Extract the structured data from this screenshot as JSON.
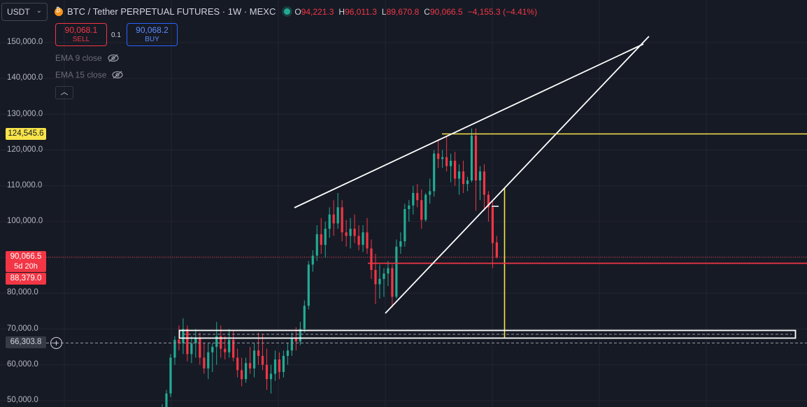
{
  "header": {
    "symbol_select": "USDT",
    "title": "BTC / Tether PERPETUAL FUTURES · 1W · MEXC",
    "ohlc": [
      {
        "label": "O",
        "value": "94,221.3"
      },
      {
        "label": "H",
        "value": "96,011.3"
      },
      {
        "label": "L",
        "value": "89,670.8"
      },
      {
        "label": "C",
        "value": "90,066.5"
      }
    ],
    "change": "−4,155.3 (−4.41%)"
  },
  "trade": {
    "sell_price": "90,068.1",
    "sell_label": "SELL",
    "spread": "0.1",
    "buy_price": "90,068.2",
    "buy_label": "BUY"
  },
  "indicators": [
    {
      "label": "EMA 9 close",
      "icon": "eye-hidden-icon"
    },
    {
      "label": "EMA 15 close",
      "icon": "eye-hidden-icon"
    }
  ],
  "price_axis": {
    "labels": [
      "150,000.0",
      "140,000.0",
      "130,000.0",
      "120,000.0",
      "110,000.0",
      "100,000.0",
      "80,000.0",
      "70,000.0",
      "60,000.0",
      "50,000.0"
    ],
    "yellow_tag": "124,545.6",
    "current_price": "90,066.5",
    "countdown": "5d 20h",
    "red_tag": "88,379.0",
    "crosshair_tag": "66,303.8"
  },
  "colors": {
    "background": "#161a25",
    "up": "#22ab94",
    "down": "#f23645",
    "yellow_line": "#f8e44a",
    "grid": "#232632"
  },
  "chart_data": {
    "type": "candlestick",
    "symbol": "BTC / Tether PERPETUAL FUTURES",
    "interval": "1W",
    "ylim": [
      48000,
      157000
    ],
    "candles": [
      [
        46000,
        49000,
        45500,
        48000
      ],
      [
        48000,
        53000,
        47500,
        52000
      ],
      [
        52000,
        63000,
        51000,
        62000
      ],
      [
        62000,
        68000,
        60000,
        67000
      ],
      [
        67000,
        71000,
        64000,
        66000
      ],
      [
        66000,
        73000,
        63000,
        70000
      ],
      [
        70000,
        71000,
        61000,
        63000
      ],
      [
        63000,
        68000,
        60500,
        66000
      ],
      [
        66000,
        70000,
        62000,
        67500
      ],
      [
        67500,
        69000,
        60000,
        62000
      ],
      [
        62000,
        66000,
        57500,
        59000
      ],
      [
        59000,
        66000,
        56000,
        63500
      ],
      [
        63500,
        66000,
        58000,
        65000
      ],
      [
        65000,
        72000,
        60000,
        68000
      ],
      [
        68000,
        71000,
        62000,
        64500
      ],
      [
        64500,
        68000,
        61500,
        63500
      ],
      [
        63500,
        70000,
        62000,
        67000
      ],
      [
        67000,
        69500,
        61000,
        62000
      ],
      [
        62000,
        64500,
        56500,
        58500
      ],
      [
        58500,
        62000,
        54000,
        56000
      ],
      [
        56000,
        62000,
        55000,
        60500
      ],
      [
        60500,
        65000,
        57500,
        59000
      ],
      [
        59000,
        66000,
        56500,
        64000
      ],
      [
        64000,
        69000,
        60000,
        62500
      ],
      [
        62500,
        68500,
        58500,
        60000
      ],
      [
        60000,
        64500,
        53000,
        56000
      ],
      [
        56000,
        60000,
        52000,
        57500
      ],
      [
        57500,
        64000,
        55500,
        61500
      ],
      [
        61500,
        63500,
        56000,
        58000
      ],
      [
        58000,
        64000,
        56500,
        62500
      ],
      [
        62500,
        66000,
        60000,
        64000
      ],
      [
        64000,
        69000,
        62500,
        67500
      ],
      [
        67500,
        70500,
        64000,
        66500
      ],
      [
        66500,
        72000,
        65500,
        70000
      ],
      [
        70000,
        78000,
        69000,
        76500
      ],
      [
        76500,
        89000,
        75500,
        88000
      ],
      [
        88000,
        92000,
        86000,
        90500
      ],
      [
        90500,
        99000,
        89000,
        96500
      ],
      [
        96500,
        101000,
        91000,
        93500
      ],
      [
        93500,
        100000,
        90000,
        98000
      ],
      [
        98000,
        104000,
        95500,
        102000
      ],
      [
        102000,
        106000,
        96000,
        99500
      ],
      [
        99500,
        108000,
        98000,
        104000
      ],
      [
        104000,
        106000,
        94500,
        97000
      ],
      [
        97000,
        100500,
        93000,
        96000
      ],
      [
        96000,
        101000,
        92500,
        98000
      ],
      [
        98000,
        102000,
        94000,
        96000
      ],
      [
        96000,
        99000,
        92000,
        93500
      ],
      [
        93500,
        99000,
        91500,
        97000
      ],
      [
        97000,
        101000,
        91000,
        92500
      ],
      [
        92500,
        95000,
        84000,
        86500
      ],
      [
        86500,
        91000,
        77000,
        82500
      ],
      [
        82500,
        88000,
        78500,
        84000
      ],
      [
        84000,
        87000,
        79000,
        85500
      ],
      [
        85500,
        89000,
        82000,
        87000
      ],
      [
        87000,
        88000,
        76000,
        79000
      ],
      [
        79000,
        95000,
        78500,
        93000
      ],
      [
        93000,
        97000,
        91000,
        94500
      ],
      [
        94500,
        105000,
        93000,
        103500
      ],
      [
        103500,
        106000,
        100000,
        104500
      ],
      [
        104500,
        110000,
        102000,
        108000
      ],
      [
        108000,
        110500,
        104000,
        106000
      ],
      [
        106000,
        109000,
        98000,
        100500
      ],
      [
        100500,
        108000,
        100000,
        107500
      ],
      [
        107500,
        112000,
        105000,
        108500
      ],
      [
        108500,
        120000,
        107000,
        119000
      ],
      [
        119000,
        123000,
        115000,
        117500
      ],
      [
        117500,
        120000,
        115000,
        118000
      ],
      [
        118000,
        124000,
        114000,
        115500
      ],
      [
        115500,
        119000,
        111000,
        117000
      ],
      [
        117000,
        119500,
        110000,
        112000
      ],
      [
        112000,
        116000,
        107500,
        114000
      ],
      [
        114000,
        117000,
        108000,
        110500
      ],
      [
        110500,
        112500,
        108500,
        111500
      ],
      [
        111500,
        126000,
        111000,
        124000
      ],
      [
        124000,
        126000,
        103000,
        111500
      ],
      [
        111500,
        115500,
        106000,
        114000
      ],
      [
        114000,
        116000,
        103000,
        107500
      ],
      [
        107500,
        108500,
        100000,
        104000
      ],
      [
        104000,
        106000,
        87000,
        94000
      ],
      [
        94221.3,
        96011.3,
        89670.8,
        90066.5
      ]
    ],
    "horizontal_levels": [
      124545.6,
      88379.0,
      66303.8,
      90066.5
    ],
    "trendlines": "rising wedge (upper and lower white lines)"
  }
}
